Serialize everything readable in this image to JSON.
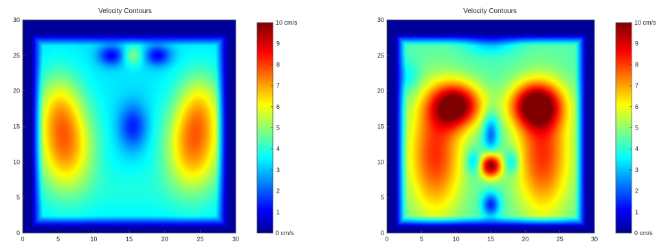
{
  "chart_data": [
    {
      "type": "heatmap",
      "title": "Velocity Contours",
      "xlabel": "",
      "ylabel": "",
      "xlim": [
        0,
        30
      ],
      "ylim": [
        0,
        30
      ],
      "xticks": [
        "0",
        "5",
        "10",
        "15",
        "20",
        "25",
        "30"
      ],
      "yticks": [
        "0",
        "5",
        "10",
        "15",
        "20",
        "25",
        "30"
      ],
      "colorbar": {
        "range": [
          0,
          10
        ],
        "unit": "cm/s",
        "ticks": [
          "0",
          "1",
          "2",
          "3",
          "4",
          "5",
          "6",
          "7",
          "8",
          "9",
          "10"
        ],
        "max_label": "10 cm/s",
        "min_label": "0  cm/s"
      },
      "colormap": "jet",
      "background_value": 3.5,
      "features": [
        {
          "x": 6,
          "y": 12,
          "sx": 2.8,
          "sy": 4.5,
          "value": 3.8
        },
        {
          "x": 24,
          "y": 12,
          "sx": 2.8,
          "sy": 4.5,
          "value": 3.8
        },
        {
          "x": 5,
          "y": 18,
          "sx": 2.2,
          "sy": 3.5,
          "value": 2.0
        },
        {
          "x": 25,
          "y": 18,
          "sx": 2.2,
          "sy": 3.5,
          "value": 2.0
        },
        {
          "x": 15.5,
          "y": 15,
          "sx": 1.4,
          "sy": 2.2,
          "value": -2.0
        },
        {
          "x": 12.5,
          "y": 25,
          "sx": 1.3,
          "sy": 1.0,
          "value": -2.3
        },
        {
          "x": 19,
          "y": 25,
          "sx": 1.3,
          "sy": 1.0,
          "value": -2.3
        },
        {
          "x": 15.5,
          "y": 25,
          "sx": 1.0,
          "sy": 1.0,
          "value": 1.6
        },
        {
          "x": 15,
          "y": 6,
          "sx": 5,
          "sy": 2.5,
          "value": 0.5
        }
      ],
      "wall_value": 0.3
    },
    {
      "type": "heatmap",
      "title": "Velocity Contours",
      "xlabel": "",
      "ylabel": "",
      "xlim": [
        0,
        30
      ],
      "ylim": [
        0,
        30
      ],
      "xticks": [
        "0",
        "5",
        "10",
        "15",
        "20",
        "25",
        "30"
      ],
      "yticks": [
        "0",
        "5",
        "10",
        "15",
        "20",
        "25",
        "30"
      ],
      "colorbar": {
        "range": [
          0,
          10
        ],
        "unit": "cm/s",
        "ticks": [
          "0",
          "1",
          "2",
          "3",
          "4",
          "5",
          "6",
          "7",
          "8",
          "9",
          "10"
        ],
        "max_label": "10 cm/s",
        "min_label": "0  cm/s"
      },
      "colormap": "jet",
      "background_value": 4.5,
      "features": [
        {
          "x": 7,
          "y": 11,
          "sx": 2.8,
          "sy": 6,
          "value": 3.8
        },
        {
          "x": 22.5,
          "y": 11,
          "sx": 2.8,
          "sy": 6,
          "value": 3.8
        },
        {
          "x": 10,
          "y": 18,
          "sx": 2.6,
          "sy": 2.2,
          "value": 5.5
        },
        {
          "x": 21.5,
          "y": 18,
          "sx": 2.6,
          "sy": 2.2,
          "value": 5.5
        },
        {
          "x": 15,
          "y": 9.5,
          "sx": 1.1,
          "sy": 1.2,
          "value": 5.5
        },
        {
          "x": 15,
          "y": 14,
          "sx": 0.8,
          "sy": 2.0,
          "value": -2.5
        },
        {
          "x": 15,
          "y": 4,
          "sx": 0.9,
          "sy": 1.2,
          "value": -3.0
        },
        {
          "x": 12.5,
          "y": 10,
          "sx": 0.8,
          "sy": 1.2,
          "value": -1.8
        },
        {
          "x": 18,
          "y": 10,
          "sx": 0.8,
          "sy": 1.2,
          "value": -1.8
        },
        {
          "x": 15,
          "y": 27,
          "sx": 2.5,
          "sy": 1.2,
          "value": -1.5
        },
        {
          "x": 3,
          "y": 22,
          "sx": 1.2,
          "sy": 1.5,
          "value": -1.0
        }
      ],
      "wall_value": 0.3
    }
  ]
}
